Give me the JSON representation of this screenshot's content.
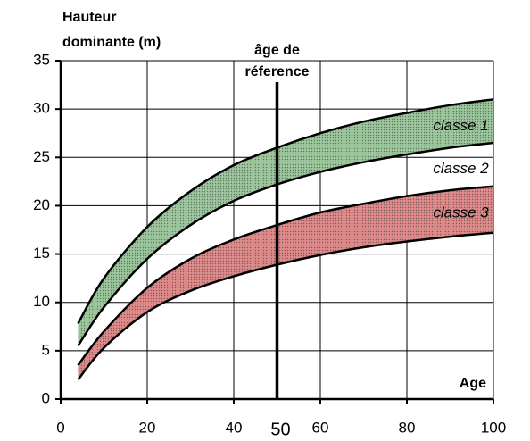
{
  "chart_data": {
    "type": "band",
    "ylabel": [
      "Hauteur",
      "dominante (m)"
    ],
    "xlabel": "Age",
    "x": [
      4,
      10,
      20,
      30,
      40,
      50,
      60,
      70,
      80,
      90,
      100
    ],
    "bands": [
      {
        "name": "classe 1",
        "color": "#9cc79c",
        "upper": [
          7.8,
          12.5,
          17.8,
          21.5,
          24.2,
          26,
          27.5,
          28.7,
          29.6,
          30.4,
          31
        ],
        "lower": [
          5.5,
          9.5,
          14.5,
          18,
          20.5,
          22.2,
          23.5,
          24.5,
          25.3,
          26,
          26.5
        ]
      },
      {
        "name": "classe 3",
        "color": "#e08a8a",
        "upper": [
          3.5,
          7,
          11.5,
          14.5,
          16.5,
          18,
          19.3,
          20.2,
          21,
          21.6,
          22
        ],
        "lower": [
          2,
          5.3,
          9,
          11.2,
          12.7,
          13.9,
          14.9,
          15.7,
          16.3,
          16.8,
          17.2
        ]
      }
    ],
    "annotations": [
      "classe 2"
    ],
    "reference_line": {
      "x": 50,
      "label": [
        "âge de",
        "réference"
      ]
    },
    "xlim": [
      0,
      100
    ],
    "xticks": [
      0,
      20,
      40,
      60,
      80,
      100
    ],
    "ylim": [
      0,
      35
    ],
    "yticks": [
      0,
      5,
      10,
      15,
      20,
      25,
      30,
      35
    ],
    "grid": true
  }
}
